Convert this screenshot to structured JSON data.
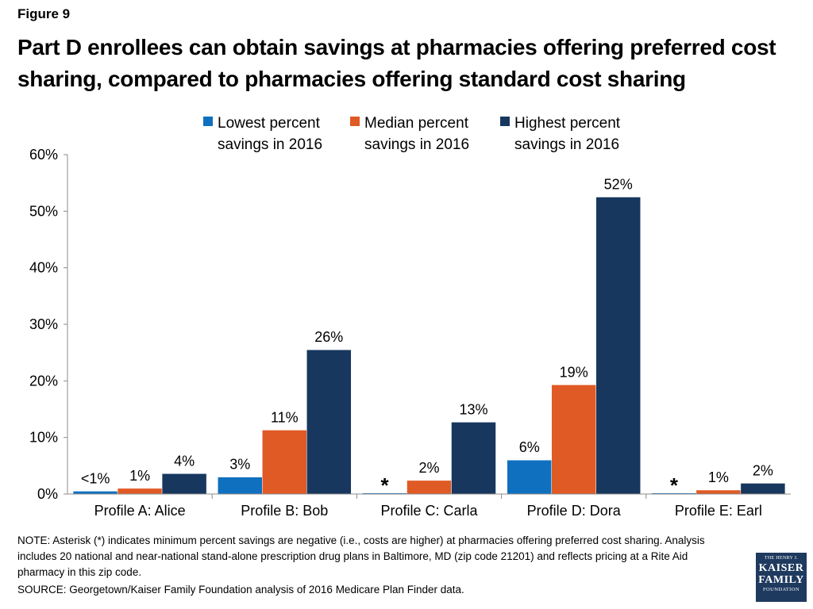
{
  "figure_label": "Figure 9",
  "title": "Part D enrollees can obtain savings at pharmacies offering preferred cost sharing, compared to pharmacies offering standard cost sharing",
  "note": "NOTE: Asterisk (*) indicates minimum percent savings are negative (i.e., costs are higher) at pharmacies offering preferred cost sharing. Analysis includes 20 national and near-national stand-alone prescription drug plans in Baltimore, MD (zip code 21201) and reflects pricing at a Rite Aid pharmacy in this zip code.",
  "source": "SOURCE: Georgetown/Kaiser Family Foundation analysis of 2016 Medicare Plan Finder data.",
  "logo": {
    "line1": "THE HENRY J.",
    "line2": "KAISER",
    "line3": "FAMILY",
    "line4": "FOUNDATION"
  },
  "chart_data": {
    "type": "bar",
    "categories": [
      "Profile A: Alice",
      "Profile B: Bob",
      "Profile C: Carla",
      "Profile D: Dora",
      "Profile E: Earl"
    ],
    "series": [
      {
        "name": "Lowest percent savings in 2016",
        "legend_lines": [
          "Lowest percent",
          "savings in 2016"
        ],
        "color": "#0f70c0",
        "values": [
          0.5,
          3,
          0,
          6,
          0
        ],
        "labels": [
          "<1%",
          "3%",
          "*",
          "6%",
          "*"
        ]
      },
      {
        "name": "Median percent savings in 2016",
        "legend_lines": [
          "Median percent",
          "savings in 2016"
        ],
        "color": "#e05a25",
        "values": [
          1,
          11.3,
          2.4,
          19.3,
          0.7
        ],
        "labels": [
          "1%",
          "11%",
          "2%",
          "19%",
          "1%"
        ]
      },
      {
        "name": "Highest percent savings in 2016",
        "legend_lines": [
          "Highest percent",
          "savings in 2016"
        ],
        "color": "#17375e",
        "values": [
          3.6,
          25.5,
          12.7,
          52.5,
          1.9
        ],
        "labels": [
          "4%",
          "26%",
          "13%",
          "52%",
          "2%"
        ]
      }
    ],
    "ylim": [
      0,
      60
    ],
    "yticks": [
      0,
      10,
      20,
      30,
      40,
      50,
      60
    ],
    "ytick_labels": [
      "0%",
      "10%",
      "20%",
      "30%",
      "40%",
      "50%",
      "60%"
    ],
    "xlabel": "",
    "ylabel": "",
    "grid": false,
    "legend_position": "top-center"
  }
}
